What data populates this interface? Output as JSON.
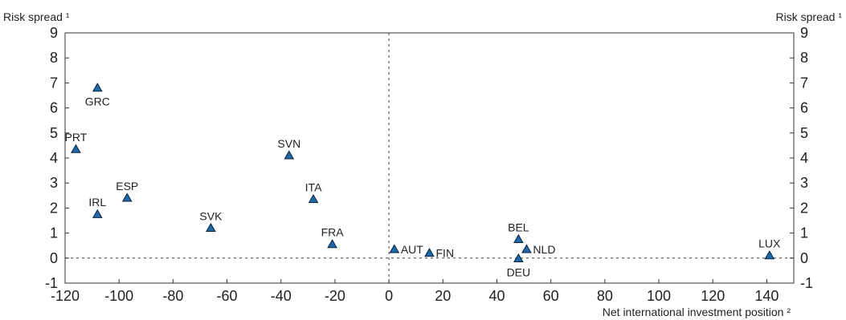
{
  "chart_data": {
    "type": "scatter",
    "title": "",
    "ylabel_left": "Risk spread ¹",
    "ylabel_right": "Risk spread ¹",
    "xlabel": "Net international investment position ²",
    "xlim": [
      -120,
      150
    ],
    "ylim": [
      -1,
      9
    ],
    "xticks": [
      -120,
      -100,
      -80,
      -60,
      -40,
      -20,
      0,
      20,
      40,
      60,
      80,
      100,
      120,
      140
    ],
    "yticks": [
      -1,
      0,
      1,
      2,
      3,
      4,
      5,
      6,
      7,
      8,
      9
    ],
    "reference_lines": {
      "x": 0,
      "y": 0,
      "style": "dashed"
    },
    "marker": "triangle",
    "marker_color": "#1f6aa6",
    "points": [
      {
        "label": "GRC",
        "x": -108,
        "y": 6.8,
        "label_pos": "below"
      },
      {
        "label": "PRT",
        "x": -116,
        "y": 4.35,
        "label_pos": "above"
      },
      {
        "label": "ESP",
        "x": -97,
        "y": 2.4,
        "label_pos": "above"
      },
      {
        "label": "IRL",
        "x": -108,
        "y": 1.75,
        "label_pos": "above"
      },
      {
        "label": "SVK",
        "x": -66,
        "y": 1.2,
        "label_pos": "above"
      },
      {
        "label": "SVN",
        "x": -37,
        "y": 4.1,
        "label_pos": "above"
      },
      {
        "label": "ITA",
        "x": -28,
        "y": 2.35,
        "label_pos": "above"
      },
      {
        "label": "FRA",
        "x": -21,
        "y": 0.55,
        "label_pos": "above"
      },
      {
        "label": "AUT",
        "x": 2,
        "y": 0.35,
        "label_pos": "right"
      },
      {
        "label": "FIN",
        "x": 15,
        "y": 0.2,
        "label_pos": "right"
      },
      {
        "label": "BEL",
        "x": 48,
        "y": 0.75,
        "label_pos": "above"
      },
      {
        "label": "NLD",
        "x": 51,
        "y": 0.35,
        "label_pos": "right"
      },
      {
        "label": "DEU",
        "x": 48,
        "y": -0.02,
        "label_pos": "below"
      },
      {
        "label": "LUX",
        "x": 141,
        "y": 0.1,
        "label_pos": "above"
      }
    ]
  }
}
